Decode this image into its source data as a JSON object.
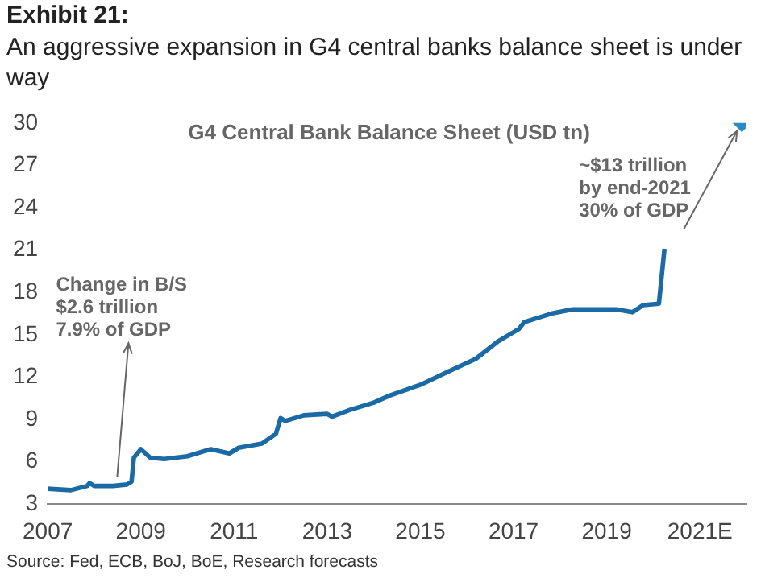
{
  "chart_data": {
    "type": "line",
    "title": "Exhibit 21:",
    "subtitle": "An aggressive expansion in G4 central banks balance sheet is under way",
    "xlim": [
      2007,
      2022
    ],
    "xticks": [
      2007,
      2009,
      2011,
      2013,
      2015,
      2017,
      2019,
      {
        "value": 2021,
        "label": "2021E"
      }
    ],
    "ylim": [
      3,
      30
    ],
    "yticks": [
      3,
      6,
      9,
      12,
      15,
      18,
      21,
      24,
      27,
      30
    ],
    "grid": false,
    "legend": false,
    "marker": "none",
    "series": [
      {
        "type": "line",
        "color": "#1a6aa6",
        "x": [
          2007.0,
          2007.5,
          2007.85,
          2007.9,
          2008.0,
          2008.4,
          2008.7,
          2008.8,
          2008.85,
          2009.0,
          2009.2,
          2009.5,
          2010.0,
          2010.4,
          2010.5,
          2010.9,
          2011.1,
          2011.6,
          2011.9,
          2012.0,
          2012.1,
          2012.5,
          2013.0,
          2013.1,
          2013.5,
          2014.0,
          2014.34,
          2015.03,
          2015.6,
          2016.19,
          2016.65,
          2017.11,
          2017.23,
          2017.81,
          2018.27,
          2018.74,
          2019.2,
          2019.55,
          2019.78,
          2020.12,
          2020.24
        ],
        "values": [
          4.1,
          4.0,
          4.3,
          4.5,
          4.3,
          4.3,
          4.4,
          4.6,
          6.3,
          6.9,
          6.3,
          6.2,
          6.4,
          6.8,
          6.9,
          6.6,
          7.0,
          7.3,
          8.0,
          9.1,
          8.9,
          9.3,
          9.4,
          9.2,
          9.7,
          10.2,
          10.7,
          11.5,
          12.4,
          13.3,
          14.5,
          15.4,
          15.9,
          16.5,
          16.8,
          16.8,
          16.8,
          16.6,
          17.1,
          17.2,
          21.1
        ]
      },
      {
        "type": "scatter",
        "marker": "diamond",
        "color": "#2a8bc4",
        "x": [
          2021.9
        ],
        "values": [
          30
        ]
      }
    ],
    "annotations": [
      "G4 Central Bank Balance Sheet (USD tn)",
      {
        "text": "Change in B/S\n$2.6 trillion\n7.9% of GDP",
        "x": 2008.7,
        "y": 4.6
      },
      {
        "text": "~$13 trillion\nby end-2021\n30% of GDP",
        "x": 2021.9,
        "y": 30
      },
      "Source: Fed, ECB, BoJ, BoE, Research forecasts"
    ]
  }
}
